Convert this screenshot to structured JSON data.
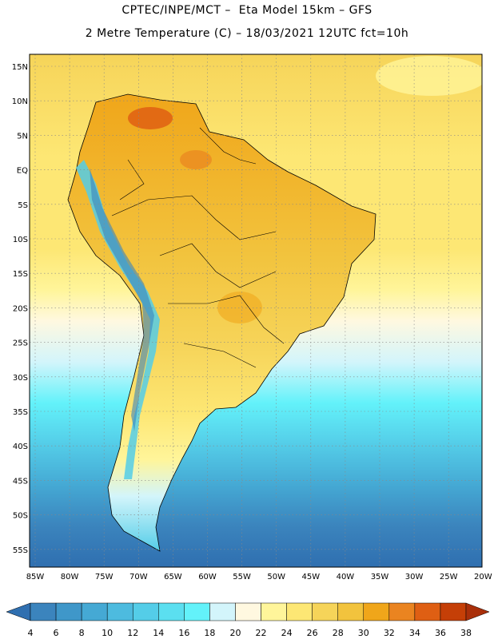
{
  "header": {
    "line1": "CPTEC/INPE/MCT –  Eta Model 15km – GFS",
    "line2": "2 Metre Temperature (C) – 18/03/2021 12UTC fct=10h"
  },
  "map": {
    "lat_labels": [
      "15N",
      "10N",
      "5N",
      "EQ",
      "5S",
      "10S",
      "15S",
      "20S",
      "25S",
      "30S",
      "35S",
      "40S",
      "45S",
      "50S",
      "55S"
    ],
    "lon_labels": [
      "85W",
      "80W",
      "75W",
      "70W",
      "65W",
      "60W",
      "55W",
      "50W",
      "45W",
      "40W",
      "35W",
      "30W",
      "25W",
      "20W"
    ]
  },
  "colorbar": {
    "labels": [
      "4",
      "6",
      "8",
      "10",
      "12",
      "14",
      "16",
      "18",
      "20",
      "22",
      "24",
      "26",
      "28",
      "30",
      "32",
      "34",
      "36",
      "38"
    ],
    "colors": [
      "#2f6fb0",
      "#3b84bd",
      "#3f97c9",
      "#45a9d4",
      "#4dbbdf",
      "#54cde8",
      "#5bdff0",
      "#63f2fa",
      "#d3f5fb",
      "#fff8e0",
      "#fff59a",
      "#fde774",
      "#f6d459",
      "#f2c33d",
      "#f0a61a",
      "#ea8420",
      "#df5f13",
      "#c53f07",
      "#a92f0a"
    ]
  }
}
